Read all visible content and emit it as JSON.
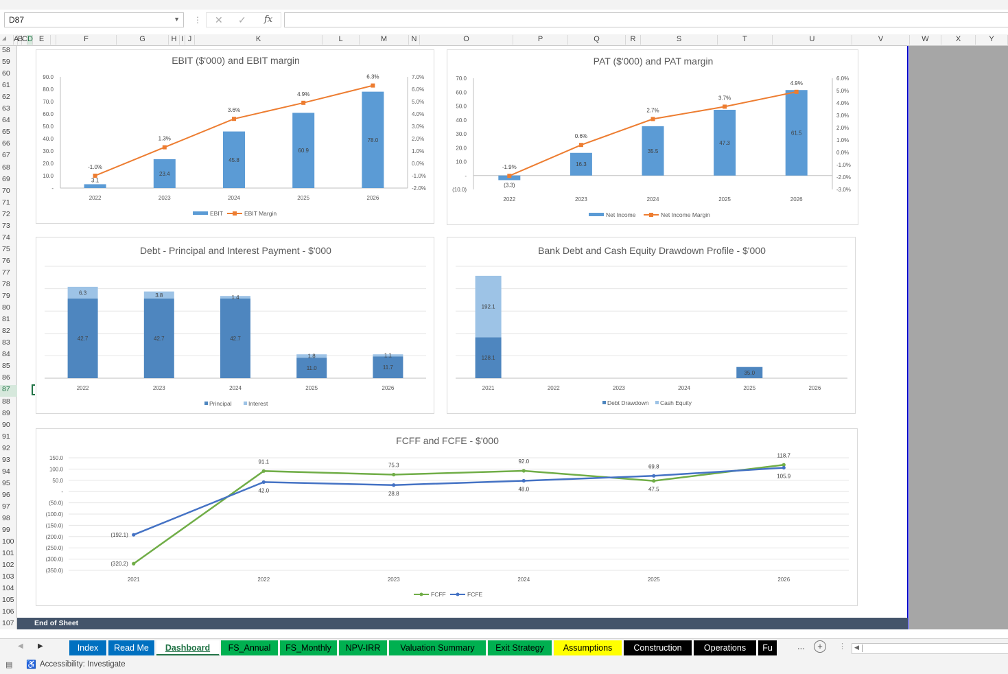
{
  "namebox": {
    "value": "D87"
  },
  "formula": {
    "value": ""
  },
  "columns": [
    "A",
    "B",
    "C",
    "D",
    "E",
    "F",
    "G",
    "H",
    "I",
    "J",
    "K",
    "L",
    "M",
    "N",
    "O",
    "P",
    "Q",
    "R",
    "S",
    "T",
    "U",
    "V",
    "W",
    "X",
    "Y"
  ],
  "rows": [
    "58",
    "59",
    "60",
    "61",
    "62",
    "63",
    "64",
    "65",
    "66",
    "67",
    "68",
    "69",
    "70",
    "71",
    "72",
    "73",
    "74",
    "75",
    "76",
    "77",
    "78",
    "79",
    "80",
    "81",
    "82",
    "83",
    "84",
    "85",
    "86",
    "87",
    "88",
    "89",
    "90",
    "91",
    "92",
    "93",
    "94",
    "95",
    "96",
    "97",
    "98",
    "99",
    "100",
    "101",
    "102",
    "103",
    "104",
    "105",
    "106",
    "107"
  ],
  "selected_row": "87",
  "end_of_sheet": "End of Sheet",
  "tabs": [
    {
      "label": "Index",
      "bg": "#0070c0",
      "fg": "#ffffff"
    },
    {
      "label": "Read Me",
      "bg": "#0070c0",
      "fg": "#ffffff"
    },
    {
      "label": "Dashboard",
      "bg": "#ffffff",
      "fg": "#217346",
      "active": true
    },
    {
      "label": "FS_Annual",
      "bg": "#00b050",
      "fg": "#000000"
    },
    {
      "label": "FS_Monthly",
      "bg": "#00b050",
      "fg": "#000000"
    },
    {
      "label": "NPV-IRR",
      "bg": "#00b050",
      "fg": "#000000"
    },
    {
      "label": "Valuation Summary",
      "bg": "#00b050",
      "fg": "#000000"
    },
    {
      "label": "Exit Strategy",
      "bg": "#00b050",
      "fg": "#000000"
    },
    {
      "label": "Assumptions",
      "bg": "#ffff00",
      "fg": "#000000"
    },
    {
      "label": "Construction",
      "bg": "#000000",
      "fg": "#ffffff"
    },
    {
      "label": "Operations",
      "bg": "#000000",
      "fg": "#ffffff"
    },
    {
      "label": "Fu",
      "bg": "#000000",
      "fg": "#ffffff"
    }
  ],
  "tabs_more": "...",
  "status": {
    "accessibility": "Accessibility: Investigate"
  },
  "colors": {
    "bar": "#5b9bd5",
    "line_orange": "#ed7d31",
    "bar_dark": "#4e86bf",
    "bar_light": "#9dc3e6",
    "green": "#70ad47",
    "blue": "#4472c4"
  },
  "chart_data": [
    {
      "type": "bar",
      "title": "EBIT ($'000) and EBIT margin",
      "categories": [
        "2022",
        "2023",
        "2024",
        "2025",
        "2026"
      ],
      "series": [
        {
          "name": "EBIT",
          "kind": "bar",
          "axis": "left",
          "values": [
            3.1,
            23.4,
            45.8,
            60.9,
            78.0
          ],
          "labels": [
            "3.1",
            "23.4",
            "45.8",
            "60.9",
            "78.0"
          ]
        },
        {
          "name": "EBIT Margin",
          "kind": "line",
          "axis": "right",
          "values": [
            -1.0,
            1.3,
            3.6,
            4.9,
            6.3
          ],
          "labels": [
            "-1.0%",
            "1.3%",
            "3.6%",
            "4.9%",
            "6.3%"
          ]
        }
      ],
      "ylim": [
        0,
        90
      ],
      "yticks": [
        "-",
        "10.0",
        "20.0",
        "30.0",
        "40.0",
        "50.0",
        "60.0",
        "70.0",
        "80.0",
        "90.0"
      ],
      "y2lim": [
        -2,
        7
      ],
      "y2ticks": [
        "-2.0%",
        "-1.0%",
        "0.0%",
        "1.0%",
        "2.0%",
        "3.0%",
        "4.0%",
        "5.0%",
        "6.0%",
        "7.0%"
      ],
      "legend": "bottom"
    },
    {
      "type": "bar",
      "title": "PAT ($'000) and PAT margin",
      "categories": [
        "2022",
        "2023",
        "2024",
        "2025",
        "2026"
      ],
      "series": [
        {
          "name": "Net Income",
          "kind": "bar",
          "axis": "left",
          "values": [
            -3.3,
            16.3,
            35.5,
            47.3,
            61.5
          ],
          "labels": [
            "(3.3)",
            "16.3",
            "35.5",
            "47.3",
            "61.5"
          ]
        },
        {
          "name": "Net Income Margin",
          "kind": "line",
          "axis": "right",
          "values": [
            -1.9,
            0.6,
            2.7,
            3.7,
            4.9
          ],
          "labels": [
            "-1.9%",
            "0.6%",
            "2.7%",
            "3.7%",
            "4.9%"
          ]
        }
      ],
      "ylim": [
        -10,
        70
      ],
      "yticks": [
        "(10.0)",
        "-",
        "10.0",
        "20.0",
        "30.0",
        "40.0",
        "50.0",
        "60.0",
        "70.0"
      ],
      "y2lim": [
        -3,
        6
      ],
      "y2ticks": [
        "-3.0%",
        "-2.0%",
        "-1.0%",
        "0.0%",
        "1.0%",
        "2.0%",
        "3.0%",
        "4.0%",
        "5.0%",
        "6.0%"
      ],
      "legend": "bottom"
    },
    {
      "type": "bar",
      "title": "Debt - Principal and Interest Payment - $'000",
      "categories": [
        "2022",
        "2023",
        "2024",
        "2025",
        "2026"
      ],
      "series": [
        {
          "name": "Principal",
          "values": [
            42.7,
            42.7,
            42.7,
            11.0,
            11.7
          ],
          "labels": [
            "42.7",
            "42.7",
            "42.7",
            "11.0",
            "11.7"
          ]
        },
        {
          "name": "Interest",
          "values": [
            6.3,
            3.8,
            1.4,
            1.8,
            1.1
          ],
          "labels": [
            "6.3",
            "3.8",
            "1.4",
            "1.8",
            "1.1"
          ]
        }
      ],
      "stacked": true,
      "ylim": [
        0,
        60
      ],
      "legend": "bottom"
    },
    {
      "type": "bar",
      "title": "Bank Debt and Cash Equity Drawdown Profile - $'000",
      "categories": [
        "2021",
        "2022",
        "2023",
        "2024",
        "2025",
        "2026"
      ],
      "series": [
        {
          "name": "Debt Drawdown",
          "values": [
            128.1,
            0,
            0,
            0,
            35.0,
            0
          ],
          "labels": [
            "128.1",
            "",
            "",
            "",
            "35.0",
            ""
          ]
        },
        {
          "name": "Cash Equity",
          "values": [
            192.1,
            0,
            0,
            0,
            0,
            0
          ],
          "labels": [
            "192.1",
            "",
            "",
            "",
            "",
            ""
          ]
        }
      ],
      "stacked": true,
      "ylim": [
        0,
        350
      ],
      "legend": "bottom"
    },
    {
      "type": "line",
      "title": "FCFF and FCFE - $'000",
      "categories": [
        "2021",
        "2022",
        "2023",
        "2024",
        "2025",
        "2026"
      ],
      "series": [
        {
          "name": "FCFF",
          "values": [
            -320.2,
            91.1,
            75.3,
            92.0,
            47.5,
            118.7
          ],
          "labels": [
            "(320.2)",
            "91.1",
            "75.3",
            "92.0",
            "47.5",
            "118.7"
          ]
        },
        {
          "name": "FCFE",
          "values": [
            -192.1,
            42.0,
            28.8,
            48.0,
            69.8,
            105.9
          ],
          "labels": [
            "(192.1)",
            "42.0",
            "28.8",
            "48.0",
            "69.8",
            "105.9"
          ]
        }
      ],
      "ylim": [
        -350,
        150
      ],
      "yticks": [
        "(350.0)",
        "(300.0)",
        "(250.0)",
        "(200.0)",
        "(150.0)",
        "(100.0)",
        "(50.0)",
        "-",
        "50.0",
        "100.0",
        "150.0"
      ],
      "legend": "bottom"
    }
  ]
}
